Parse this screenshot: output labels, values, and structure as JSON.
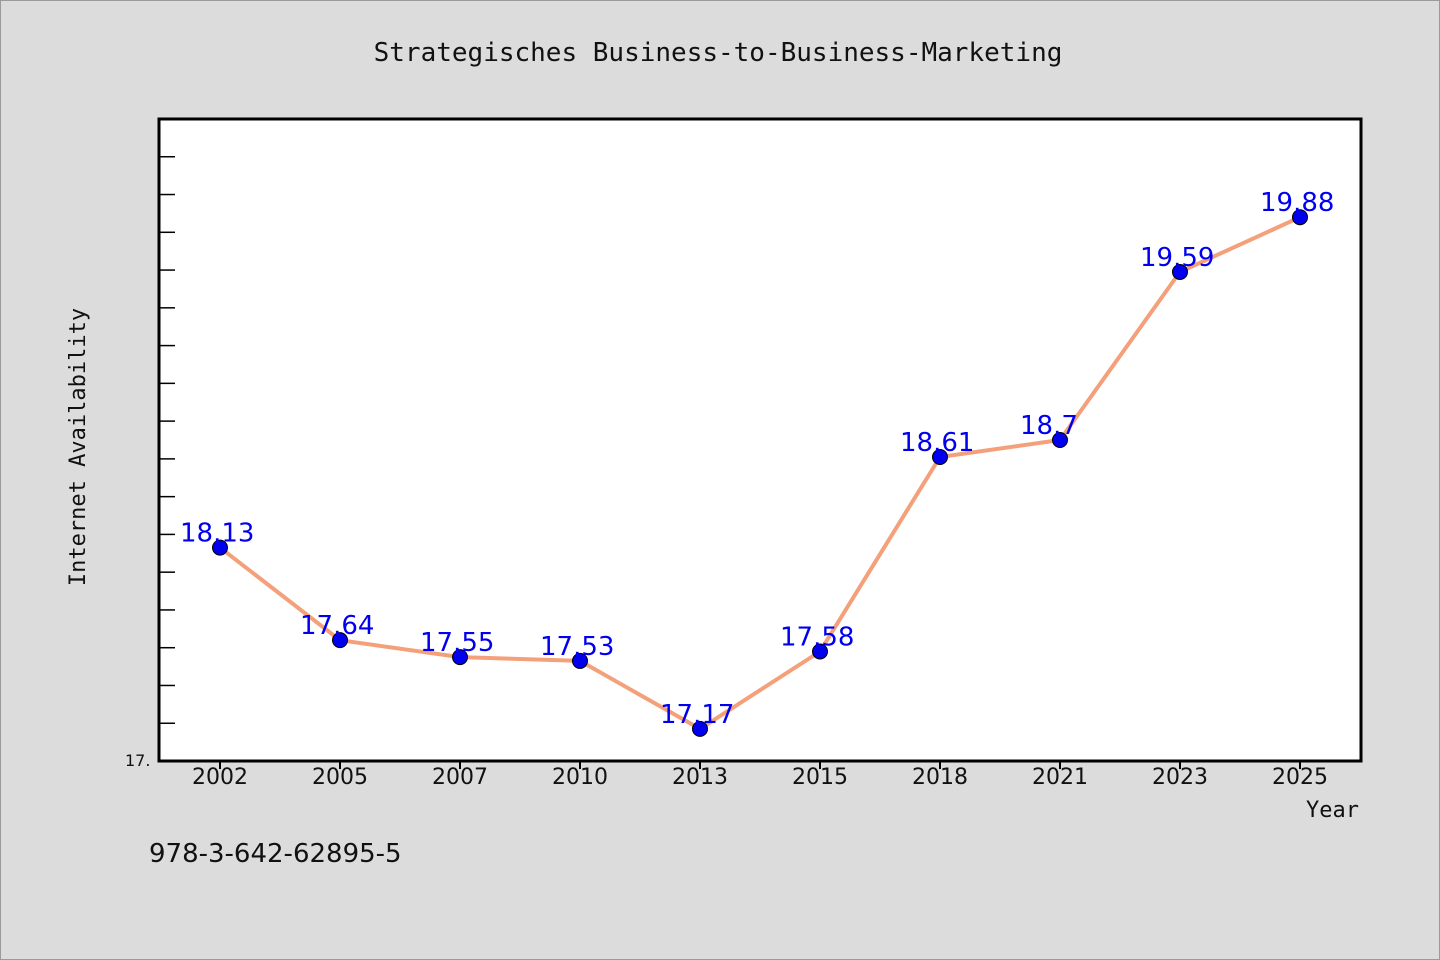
{
  "chart_data": {
    "type": "line",
    "title": "Strategisches Business-to-Business-Marketing",
    "xlabel": "Year",
    "ylabel": "Internet Availability",
    "categories": [
      "2002",
      "2005",
      "2007",
      "2010",
      "2013",
      "2015",
      "2018",
      "2021",
      "2023",
      "2025"
    ],
    "values": [
      18.13,
      17.64,
      17.55,
      17.53,
      17.17,
      17.58,
      18.61,
      18.7,
      19.59,
      19.88
    ],
    "data_labels": [
      "18.13",
      "17.64",
      "17.55",
      "17.53",
      "17.17",
      "17.58",
      "18.61",
      "18.7",
      "19.59",
      "19.88"
    ],
    "ylim": [
      17.0,
      20.4
    ],
    "ytick_label": "17.",
    "line_color": "#f4a07a",
    "marker_color": "#0000ee",
    "label_color": "#0000ee",
    "grid": false,
    "legend": "none"
  },
  "footnote": "978-3-642-62895-5"
}
